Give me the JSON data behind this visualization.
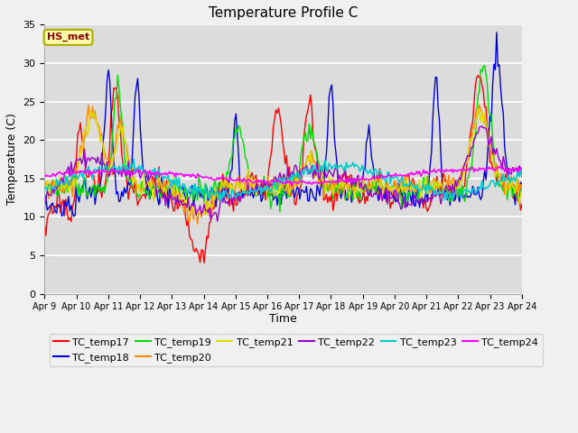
{
  "title": "Temperature Profile C",
  "xlabel": "Time",
  "ylabel": "Temperature (C)",
  "ylim": [
    0,
    35
  ],
  "yticks": [
    0,
    5,
    10,
    15,
    20,
    25,
    30,
    35
  ],
  "xtick_labels": [
    "Apr 9",
    "Apr 10",
    "Apr 11",
    "Apr 12",
    "Apr 13",
    "Apr 14",
    "Apr 15",
    "Apr 16",
    "Apr 17",
    "Apr 18",
    "Apr 19",
    "Apr 20",
    "Apr 21",
    "Apr 22",
    "Apr 23",
    "Apr 24"
  ],
  "annotation_text": "HS_met",
  "series_colors": {
    "TC_temp17": "#ff0000",
    "TC_temp18": "#0000dd",
    "TC_temp19": "#00dd00",
    "TC_temp20": "#ff8800",
    "TC_temp21": "#dddd00",
    "TC_temp22": "#9900cc",
    "TC_temp23": "#00cccc",
    "TC_temp24": "#ff00ff"
  },
  "fig_bg": "#f0f0f0",
  "plot_bg": "#dcdcdc",
  "grid_color": "#ffffff"
}
